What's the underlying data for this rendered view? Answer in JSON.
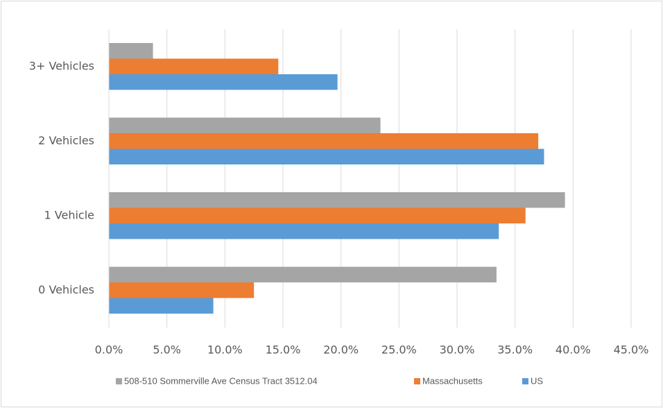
{
  "chart_data": {
    "type": "hbar",
    "categories": [
      "0 Vehicles",
      "1 Vehicle",
      "2 Vehicles",
      "3+ Vehicles"
    ],
    "series": [
      {
        "name": "508-510 Sommerville Ave Census Tract 3512.04",
        "color": "#a5a5a5",
        "values": [
          33.4,
          39.3,
          23.4,
          3.8
        ]
      },
      {
        "name": "Massachusetts",
        "color": "#ed7d31",
        "values": [
          12.5,
          35.9,
          37.0,
          14.6
        ]
      },
      {
        "name": "US",
        "color": "#5b9bd5",
        "values": [
          9.0,
          33.6,
          37.5,
          19.7
        ]
      }
    ],
    "xlim": [
      0,
      45
    ],
    "xticks": [
      {
        "value": 0,
        "label": "0.0%"
      },
      {
        "value": 5,
        "label": "5.0%"
      },
      {
        "value": 10,
        "label": "10.0%"
      },
      {
        "value": 15,
        "label": "15.0%"
      },
      {
        "value": 20,
        "label": "20.0%"
      },
      {
        "value": 25,
        "label": "25.0%"
      },
      {
        "value": 30,
        "label": "30.0%"
      },
      {
        "value": 35,
        "label": "35.0%"
      },
      {
        "value": 40,
        "label": "40.0%"
      },
      {
        "value": 45,
        "label": "45.0%"
      }
    ],
    "grid": true
  }
}
